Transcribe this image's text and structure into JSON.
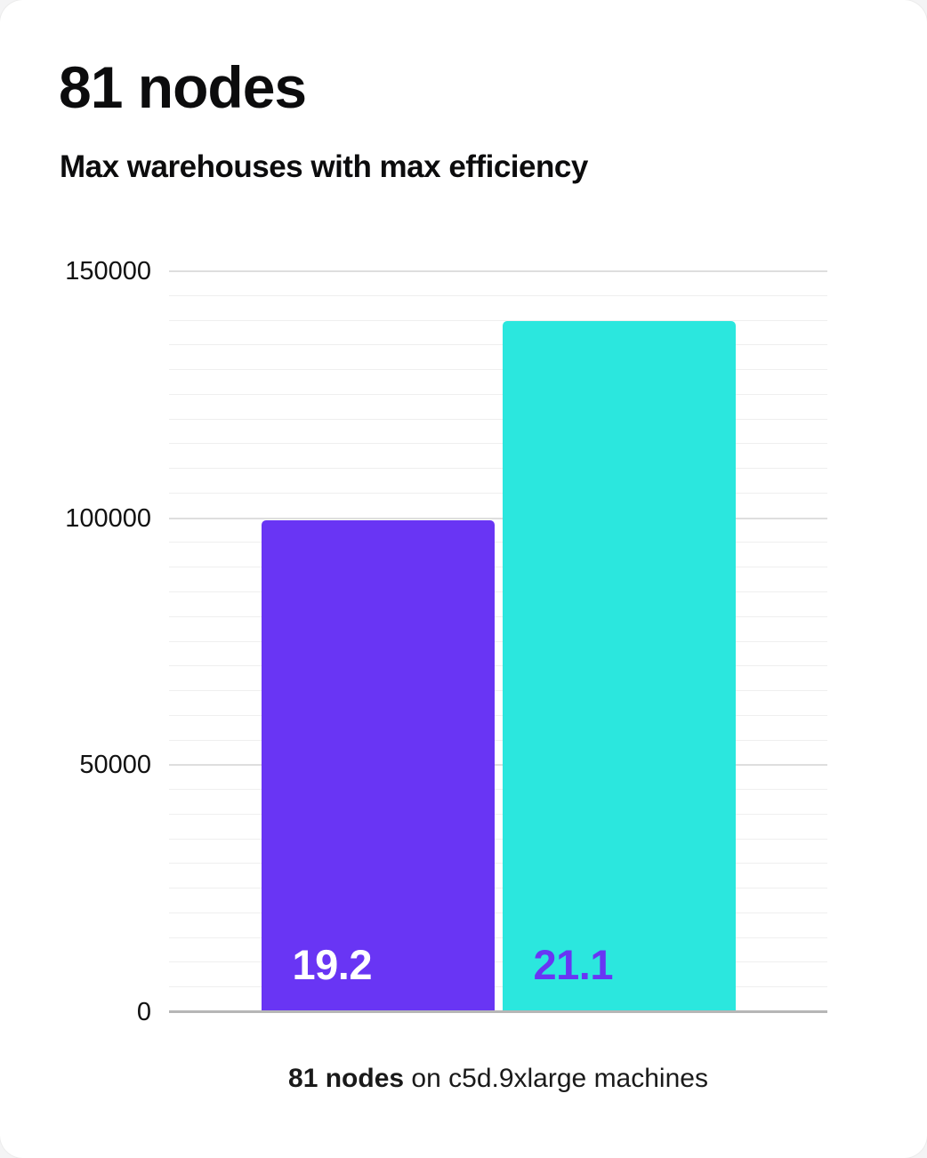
{
  "chart_data": {
    "type": "bar",
    "title": "81 nodes",
    "subtitle": "Max warehouses with max efficiency",
    "caption": {
      "bold": "81 nodes",
      "rest": " on c5d.9xlarge machines"
    },
    "xlabel": "",
    "ylabel": "",
    "ylim": [
      0,
      150000
    ],
    "yticks": [
      0,
      50000,
      100000,
      150000
    ],
    "minor_grid_step": 5000,
    "grid": true,
    "legend": false,
    "bars": [
      {
        "label": "19.2",
        "value": 99500,
        "color": "#6935F4",
        "label_color": "#ffffff"
      },
      {
        "label": "21.1",
        "value": 140000,
        "color": "#2BE7DE",
        "label_color": "#6935F4"
      }
    ]
  },
  "colors": {
    "accent_purple": "#6935F4",
    "accent_cyan": "#2BE7DE",
    "axis_line": "#b6b6b6",
    "major_grid": "#dedede",
    "minor_grid": "#efefef",
    "text": "#0c0c0d"
  }
}
